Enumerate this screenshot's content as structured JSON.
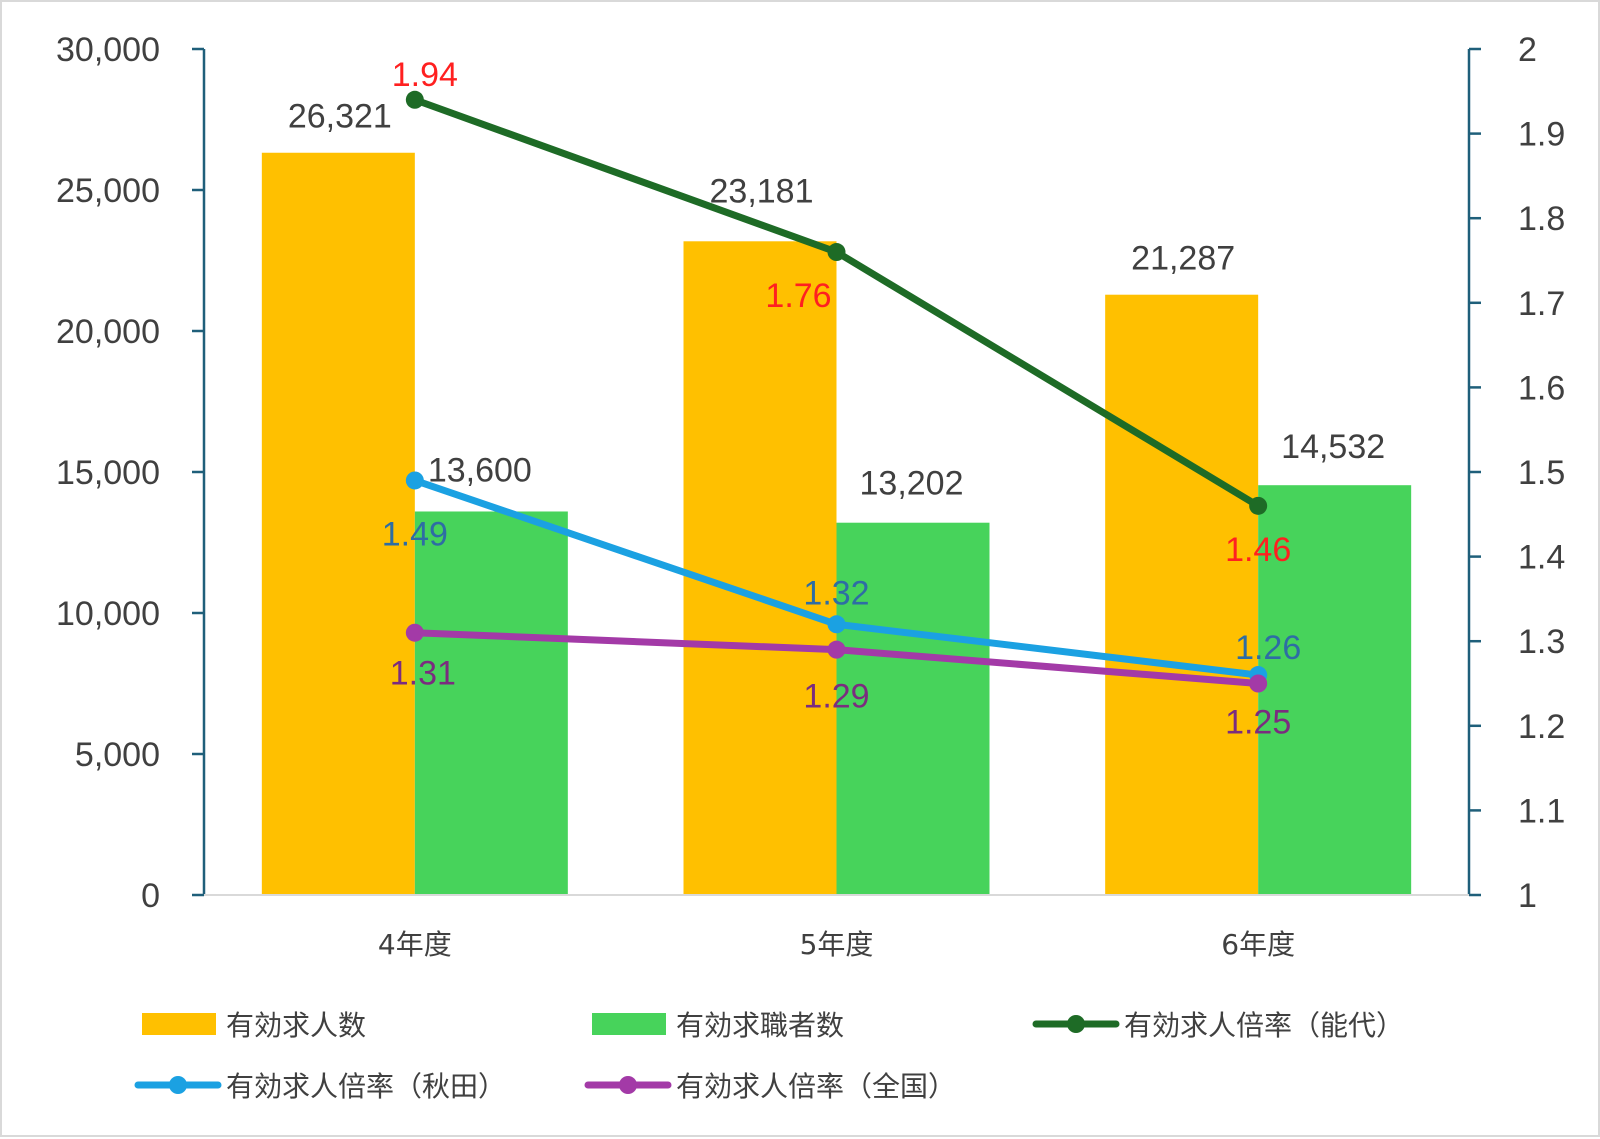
{
  "chart_data": {
    "type": "bar",
    "categories": [
      "4年度",
      "5年度",
      "6年度"
    ],
    "y_left": {
      "ylim": [
        0,
        30000
      ],
      "ticks": [
        "0",
        "5,000",
        "10,000",
        "15,000",
        "20,000",
        "25,000",
        "30,000"
      ]
    },
    "y_right": {
      "ylim": [
        1,
        2
      ],
      "ticks": [
        "1",
        "1.1",
        "1.2",
        "1.3",
        "1.4",
        "1.5",
        "1.6",
        "1.7",
        "1.8",
        "1.9",
        "2"
      ]
    },
    "bar_series": [
      {
        "name": "有効求人数",
        "color": "#FFC000",
        "values": [
          26321,
          23181,
          21287
        ],
        "labels": [
          "26,321",
          "23,181",
          "21,287"
        ]
      },
      {
        "name": "有効求職者数",
        "color": "#47D35B",
        "values": [
          13600,
          13202,
          14532
        ],
        "labels": [
          "13,600",
          "13,202",
          "14,532"
        ]
      }
    ],
    "line_series": [
      {
        "name": "有効求人倍率（能代）",
        "color": "#1E6B26",
        "label_color": "#FF2020",
        "values": [
          1.94,
          1.76,
          1.46
        ],
        "labels": [
          "1.94",
          "1.76",
          "1.46"
        ]
      },
      {
        "name": "有効求人倍率（秋田）",
        "color": "#1BA1E2",
        "label_color": "#2E6DA4",
        "values": [
          1.49,
          1.32,
          1.26
        ],
        "labels": [
          "1.49",
          "1.32",
          "1.26"
        ]
      },
      {
        "name": "有効求人倍率（全国）",
        "color": "#A33AA7",
        "label_color": "#7B2C7F",
        "values": [
          1.31,
          1.29,
          1.25
        ],
        "labels": [
          "1.31",
          "1.29",
          "1.25"
        ]
      }
    ],
    "axis_color": "#1F5F7A",
    "legend_position": "bottom"
  }
}
